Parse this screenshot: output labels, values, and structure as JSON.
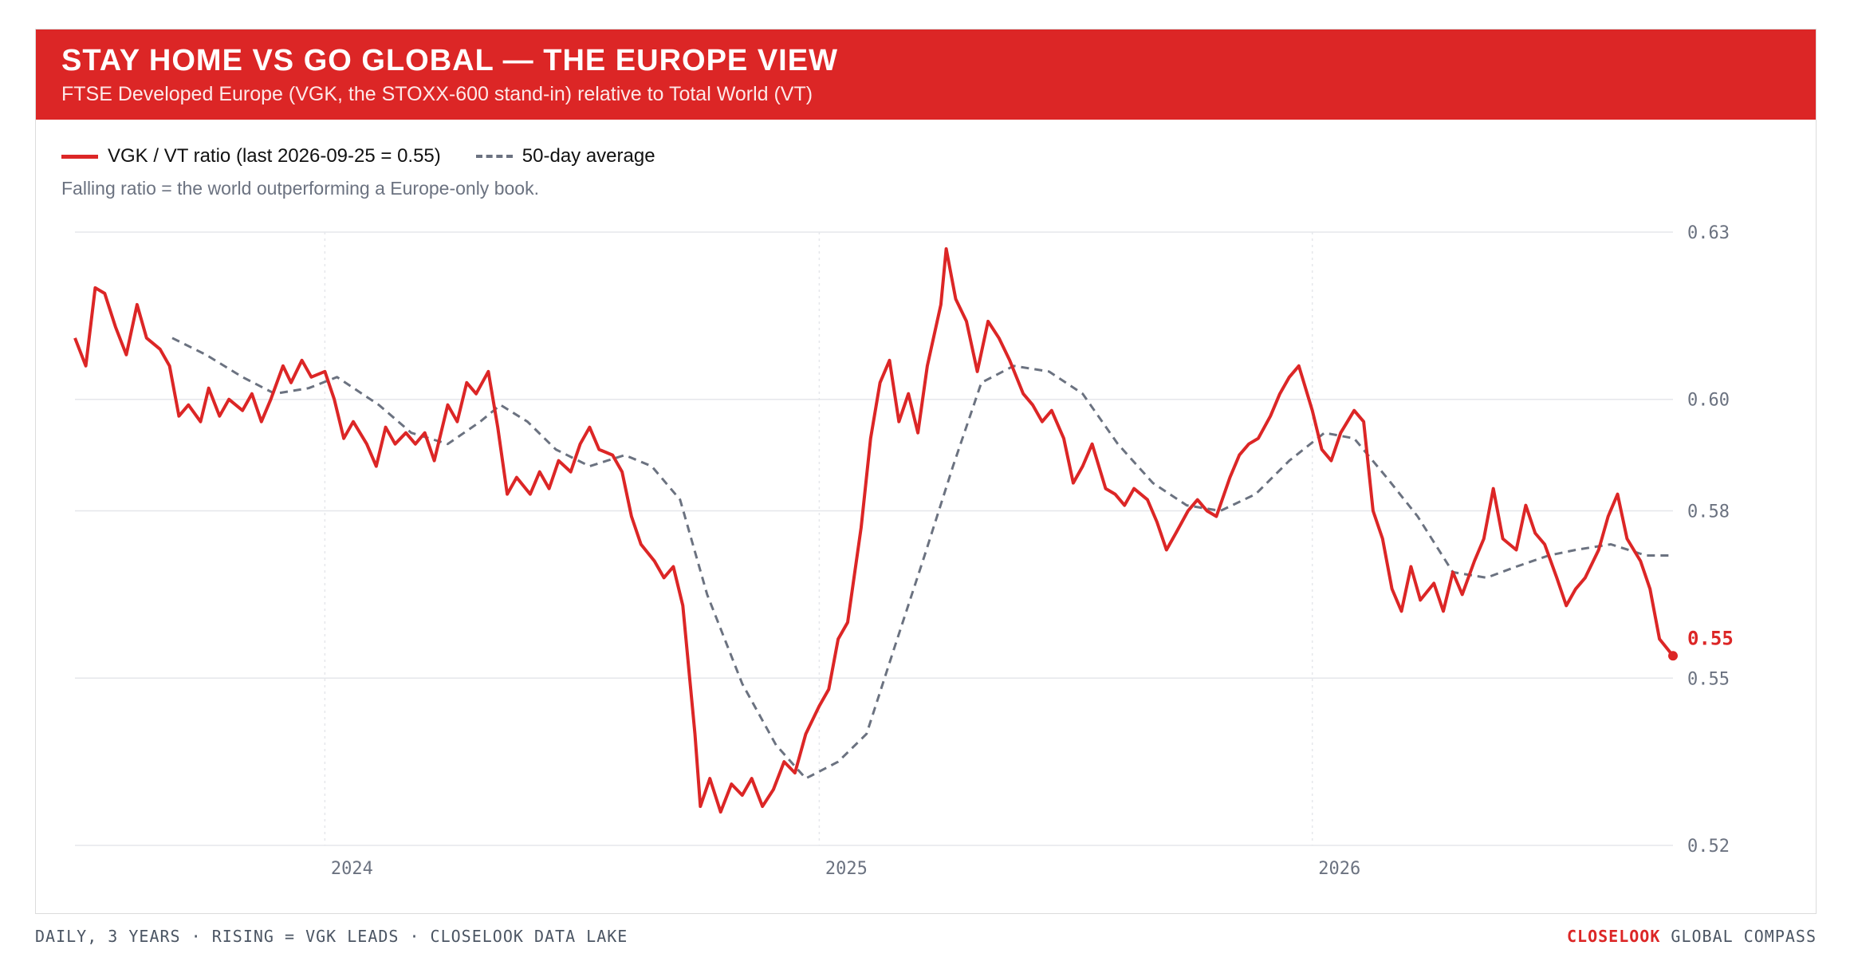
{
  "header": {
    "title": "STAY HOME VS GO GLOBAL — THE EUROPE VIEW",
    "subtitle": "FTSE Developed Europe (VGK, the STOXX-600 stand-in) relative to Total World (VT)"
  },
  "legend": {
    "ratio_label": "VGK / VT ratio (last 2026-09-25 = 0.55)",
    "average_label": "50-day average"
  },
  "note": "Falling ratio = the world outperforming a Europe-only book.",
  "footer": {
    "left": "DAILY, 3 YEARS · RISING = VGK LEADS · CLOSELOOK DATA LAKE",
    "brand": "CLOSELOOK",
    "right": "GLOBAL COMPASS"
  },
  "colors": {
    "ratio": "#dc2626",
    "average": "#6b7280",
    "banner": "#dc2626",
    "grid": "#e5e7eb"
  },
  "chart_data": {
    "type": "line",
    "title": "STAY HOME VS GO GLOBAL — THE EUROPE VIEW",
    "y_ticks": [
      "0.52",
      "0.55",
      "0.58",
      "0.60",
      "0.63"
    ],
    "y_tick_values": [
      0.52,
      0.55,
      0.58,
      0.6,
      0.63
    ],
    "ylim": [
      0.52,
      0.63
    ],
    "x_ticks": [
      "2024",
      "2025",
      "2026"
    ],
    "x_tick_dates": [
      "2024-01-01",
      "2025-01-01",
      "2026-01-01"
    ],
    "xlim": [
      "2023-06-30",
      "2026-09-25"
    ],
    "grid": true,
    "y_axis_position": "right",
    "last_value_label": "0.55",
    "series": [
      {
        "name": "VGK / VT ratio",
        "style": "solid",
        "points": [
          [
            "2023-06-30",
            0.611
          ],
          [
            "2023-07-08",
            0.606
          ],
          [
            "2023-07-15",
            0.62
          ],
          [
            "2023-07-22",
            0.619
          ],
          [
            "2023-07-30",
            0.613
          ],
          [
            "2023-08-07",
            0.608
          ],
          [
            "2023-08-15",
            0.617
          ],
          [
            "2023-08-22",
            0.611
          ],
          [
            "2023-09-01",
            0.609
          ],
          [
            "2023-09-08",
            0.606
          ],
          [
            "2023-09-15",
            0.597
          ],
          [
            "2023-09-22",
            0.599
          ],
          [
            "2023-10-01",
            0.596
          ],
          [
            "2023-10-07",
            0.602
          ],
          [
            "2023-10-15",
            0.597
          ],
          [
            "2023-10-22",
            0.6
          ],
          [
            "2023-11-01",
            0.598
          ],
          [
            "2023-11-08",
            0.601
          ],
          [
            "2023-11-15",
            0.596
          ],
          [
            "2023-11-22",
            0.6
          ],
          [
            "2023-12-01",
            0.606
          ],
          [
            "2023-12-07",
            0.603
          ],
          [
            "2023-12-15",
            0.607
          ],
          [
            "2023-12-22",
            0.604
          ],
          [
            "2024-01-01",
            0.605
          ],
          [
            "2024-01-08",
            0.6
          ],
          [
            "2024-01-15",
            0.593
          ],
          [
            "2024-01-22",
            0.596
          ],
          [
            "2024-02-01",
            0.592
          ],
          [
            "2024-02-08",
            0.588
          ],
          [
            "2024-02-15",
            0.595
          ],
          [
            "2024-02-22",
            0.592
          ],
          [
            "2024-03-01",
            0.594
          ],
          [
            "2024-03-08",
            0.592
          ],
          [
            "2024-03-15",
            0.594
          ],
          [
            "2024-03-22",
            0.589
          ],
          [
            "2024-04-01",
            0.599
          ],
          [
            "2024-04-08",
            0.596
          ],
          [
            "2024-04-15",
            0.603
          ],
          [
            "2024-04-22",
            0.601
          ],
          [
            "2024-05-01",
            0.605
          ],
          [
            "2024-05-08",
            0.595
          ],
          [
            "2024-05-15",
            0.583
          ],
          [
            "2024-05-22",
            0.586
          ],
          [
            "2024-06-01",
            0.583
          ],
          [
            "2024-06-08",
            0.587
          ],
          [
            "2024-06-15",
            0.584
          ],
          [
            "2024-06-22",
            0.589
          ],
          [
            "2024-07-01",
            0.587
          ],
          [
            "2024-07-08",
            0.592
          ],
          [
            "2024-07-15",
            0.595
          ],
          [
            "2024-07-22",
            0.591
          ],
          [
            "2024-08-01",
            0.59
          ],
          [
            "2024-08-08",
            0.587
          ],
          [
            "2024-08-15",
            0.579
          ],
          [
            "2024-08-22",
            0.574
          ],
          [
            "2024-09-01",
            0.571
          ],
          [
            "2024-09-08",
            0.568
          ],
          [
            "2024-09-15",
            0.57
          ],
          [
            "2024-09-22",
            0.563
          ],
          [
            "2024-10-01",
            0.54
          ],
          [
            "2024-10-05",
            0.527
          ],
          [
            "2024-10-12",
            0.532
          ],
          [
            "2024-10-20",
            0.526
          ],
          [
            "2024-10-28",
            0.531
          ],
          [
            "2024-11-05",
            0.529
          ],
          [
            "2024-11-12",
            0.532
          ],
          [
            "2024-11-20",
            0.527
          ],
          [
            "2024-11-28",
            0.53
          ],
          [
            "2024-12-06",
            0.535
          ],
          [
            "2024-12-14",
            0.533
          ],
          [
            "2024-12-22",
            0.54
          ],
          [
            "2025-01-01",
            0.545
          ],
          [
            "2025-01-08",
            0.548
          ],
          [
            "2025-01-15",
            0.557
          ],
          [
            "2025-01-22",
            0.56
          ],
          [
            "2025-02-01",
            0.577
          ],
          [
            "2025-02-08",
            0.593
          ],
          [
            "2025-02-15",
            0.603
          ],
          [
            "2025-02-22",
            0.607
          ],
          [
            "2025-03-01",
            0.596
          ],
          [
            "2025-03-08",
            0.601
          ],
          [
            "2025-03-15",
            0.594
          ],
          [
            "2025-03-22",
            0.606
          ],
          [
            "2025-04-01",
            0.617
          ],
          [
            "2025-04-05",
            0.627
          ],
          [
            "2025-04-12",
            0.618
          ],
          [
            "2025-04-20",
            0.614
          ],
          [
            "2025-04-28",
            0.605
          ],
          [
            "2025-05-06",
            0.614
          ],
          [
            "2025-05-14",
            0.611
          ],
          [
            "2025-05-22",
            0.607
          ],
          [
            "2025-06-01",
            0.601
          ],
          [
            "2025-06-08",
            0.599
          ],
          [
            "2025-06-15",
            0.596
          ],
          [
            "2025-06-22",
            0.598
          ],
          [
            "2025-07-01",
            0.593
          ],
          [
            "2025-07-08",
            0.585
          ],
          [
            "2025-07-15",
            0.588
          ],
          [
            "2025-07-22",
            0.592
          ],
          [
            "2025-08-01",
            0.584
          ],
          [
            "2025-08-08",
            0.583
          ],
          [
            "2025-08-15",
            0.581
          ],
          [
            "2025-08-22",
            0.584
          ],
          [
            "2025-09-01",
            0.582
          ],
          [
            "2025-09-08",
            0.578
          ],
          [
            "2025-09-15",
            0.573
          ],
          [
            "2025-09-22",
            0.576
          ],
          [
            "2025-10-01",
            0.58
          ],
          [
            "2025-10-08",
            0.582
          ],
          [
            "2025-10-15",
            0.58
          ],
          [
            "2025-10-22",
            0.579
          ],
          [
            "2025-11-01",
            0.586
          ],
          [
            "2025-11-08",
            0.59
          ],
          [
            "2025-11-15",
            0.592
          ],
          [
            "2025-11-22",
            0.593
          ],
          [
            "2025-12-01",
            0.597
          ],
          [
            "2025-12-08",
            0.601
          ],
          [
            "2025-12-15",
            0.604
          ],
          [
            "2025-12-22",
            0.606
          ],
          [
            "2026-01-01",
            0.598
          ],
          [
            "2026-01-08",
            0.591
          ],
          [
            "2026-01-15",
            0.589
          ],
          [
            "2026-01-22",
            0.594
          ],
          [
            "2026-02-01",
            0.598
          ],
          [
            "2026-02-08",
            0.596
          ],
          [
            "2026-02-15",
            0.58
          ],
          [
            "2026-02-22",
            0.575
          ],
          [
            "2026-03-01",
            0.566
          ],
          [
            "2026-03-08",
            0.562
          ],
          [
            "2026-03-15",
            0.57
          ],
          [
            "2026-03-22",
            0.564
          ],
          [
            "2026-04-01",
            0.567
          ],
          [
            "2026-04-08",
            0.562
          ],
          [
            "2026-04-15",
            0.569
          ],
          [
            "2026-04-22",
            0.565
          ],
          [
            "2026-05-01",
            0.571
          ],
          [
            "2026-05-08",
            0.575
          ],
          [
            "2026-05-15",
            0.584
          ],
          [
            "2026-05-22",
            0.575
          ],
          [
            "2026-06-01",
            0.573
          ],
          [
            "2026-06-08",
            0.581
          ],
          [
            "2026-06-15",
            0.576
          ],
          [
            "2026-06-22",
            0.574
          ],
          [
            "2026-07-01",
            0.568
          ],
          [
            "2026-07-08",
            0.563
          ],
          [
            "2026-07-15",
            0.566
          ],
          [
            "2026-07-22",
            0.568
          ],
          [
            "2026-08-01",
            0.573
          ],
          [
            "2026-08-08",
            0.579
          ],
          [
            "2026-08-15",
            0.583
          ],
          [
            "2026-08-22",
            0.575
          ],
          [
            "2026-09-01",
            0.571
          ],
          [
            "2026-09-08",
            0.566
          ],
          [
            "2026-09-15",
            0.557
          ],
          [
            "2026-09-25",
            0.554
          ]
        ]
      },
      {
        "name": "50-day average",
        "style": "dashed",
        "points": [
          [
            "2023-09-10",
            0.611
          ],
          [
            "2023-10-05",
            0.608
          ],
          [
            "2023-11-01",
            0.604
          ],
          [
            "2023-11-25",
            0.601
          ],
          [
            "2023-12-20",
            0.602
          ],
          [
            "2024-01-10",
            0.604
          ],
          [
            "2024-02-10",
            0.599
          ],
          [
            "2024-03-05",
            0.594
          ],
          [
            "2024-04-01",
            0.592
          ],
          [
            "2024-04-25",
            0.596
          ],
          [
            "2024-05-10",
            0.599
          ],
          [
            "2024-05-30",
            0.596
          ],
          [
            "2024-06-20",
            0.591
          ],
          [
            "2024-07-15",
            0.588
          ],
          [
            "2024-08-10",
            0.59
          ],
          [
            "2024-08-30",
            0.588
          ],
          [
            "2024-09-20",
            0.582
          ],
          [
            "2024-10-10",
            0.565
          ],
          [
            "2024-11-05",
            0.549
          ],
          [
            "2024-11-30",
            0.538
          ],
          [
            "2024-12-22",
            0.532
          ],
          [
            "2025-01-15",
            0.535
          ],
          [
            "2025-02-05",
            0.54
          ],
          [
            "2025-02-25",
            0.555
          ],
          [
            "2025-03-20",
            0.572
          ],
          [
            "2025-04-10",
            0.588
          ],
          [
            "2025-05-01",
            0.603
          ],
          [
            "2025-05-25",
            0.606
          ],
          [
            "2025-06-20",
            0.605
          ],
          [
            "2025-07-15",
            0.601
          ],
          [
            "2025-08-10",
            0.592
          ],
          [
            "2025-09-05",
            0.585
          ],
          [
            "2025-09-30",
            0.581
          ],
          [
            "2025-10-25",
            0.58
          ],
          [
            "2025-11-20",
            0.583
          ],
          [
            "2025-12-15",
            0.589
          ],
          [
            "2026-01-10",
            0.594
          ],
          [
            "2026-02-01",
            0.593
          ],
          [
            "2026-02-25",
            0.586
          ],
          [
            "2026-03-20",
            0.579
          ],
          [
            "2026-04-15",
            0.569
          ],
          [
            "2026-05-10",
            0.568
          ],
          [
            "2026-06-01",
            0.57
          ],
          [
            "2026-06-25",
            0.572
          ],
          [
            "2026-07-15",
            0.573
          ],
          [
            "2026-08-10",
            0.574
          ],
          [
            "2026-09-05",
            0.572
          ],
          [
            "2026-09-25",
            0.572
          ]
        ]
      }
    ]
  }
}
